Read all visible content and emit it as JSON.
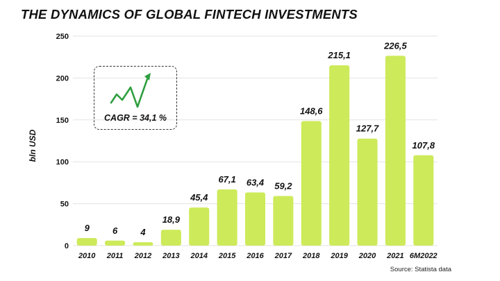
{
  "title": "THE DYNAMICS OF GLOBAL FINTECH INVESTMENTS",
  "source": "Source: Statista data",
  "cagr": {
    "label": "CAGR = 34,1 %",
    "icon": "trend-up-arrow-icon",
    "color": "#2e9e3e"
  },
  "colors": {
    "bar": "#cdea5a",
    "grid": "#e3e3e3"
  },
  "chart_data": {
    "type": "bar",
    "title": "THE DYNAMICS OF GLOBAL FINTECH INVESTMENTS",
    "ylabel": "bln USD",
    "xlabel": "",
    "ylim": [
      0,
      250
    ],
    "yticks": [
      0,
      50,
      100,
      150,
      200,
      250
    ],
    "grid": true,
    "categories": [
      "2010",
      "2011",
      "2012",
      "2013",
      "2014",
      "2015",
      "2016",
      "2017",
      "2018",
      "2019",
      "2020",
      "2021",
      "6M2022"
    ],
    "values": [
      9,
      6,
      4,
      18.9,
      45.4,
      67.1,
      63.4,
      59.2,
      148.6,
      215.1,
      127.7,
      226.5,
      107.8
    ],
    "value_labels": [
      "9",
      "6",
      "4",
      "18,9",
      "45,4",
      "67,1",
      "63,4",
      "59,2",
      "148,6",
      "215,1",
      "127,7",
      "226,5",
      "107,8"
    ]
  }
}
